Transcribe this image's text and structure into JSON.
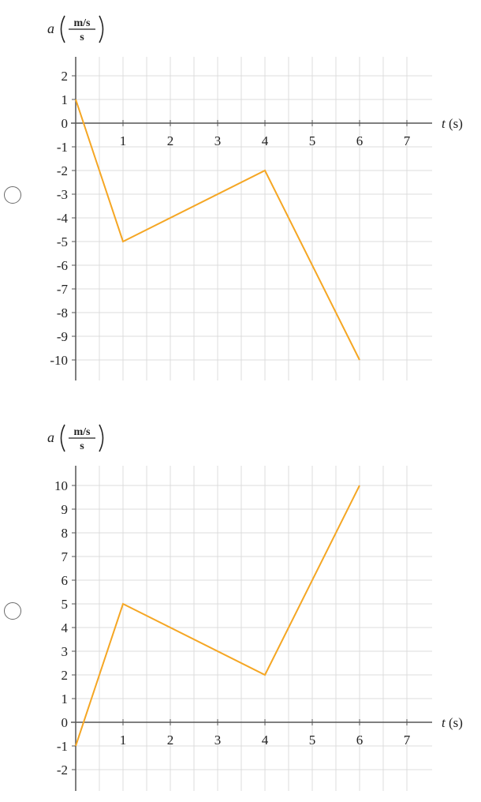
{
  "options": [
    {
      "radio_selected": false,
      "chart_data": {
        "type": "line",
        "ylabel": {
          "symbol": "a",
          "unit_num": "m/s",
          "unit_den": "s"
        },
        "xlabel": "t (s)",
        "xlim": [
          0,
          7
        ],
        "ylim": [
          -10,
          2
        ],
        "x_ticks": [
          "1",
          "2",
          "3",
          "4",
          "5",
          "6",
          "7"
        ],
        "y_ticks": [
          "2",
          "1",
          "0",
          "-1",
          "-2",
          "-3",
          "-4",
          "-5",
          "-6",
          "-7",
          "-8",
          "-9",
          "-10"
        ],
        "grid": true,
        "line_color": "#f5a623",
        "series": [
          {
            "x": [
              0,
              1,
              4,
              6
            ],
            "y": [
              1,
              -5,
              -2,
              -10
            ]
          }
        ]
      }
    },
    {
      "radio_selected": false,
      "chart_data": {
        "type": "line",
        "ylabel": {
          "symbol": "a",
          "unit_num": "m/s",
          "unit_den": "s"
        },
        "xlabel": "t (s)",
        "xlim": [
          0,
          7
        ],
        "ylim": [
          -2,
          10
        ],
        "x_ticks": [
          "1",
          "2",
          "3",
          "4",
          "5",
          "6",
          "7"
        ],
        "y_ticks": [
          "10",
          "9",
          "8",
          "7",
          "6",
          "5",
          "4",
          "3",
          "2",
          "1",
          "0",
          "-1",
          "-2"
        ],
        "grid": true,
        "line_color": "#f5a623",
        "series": [
          {
            "x": [
              0,
              1,
              4,
              6
            ],
            "y": [
              -1,
              5,
              2,
              10
            ]
          }
        ]
      }
    }
  ]
}
